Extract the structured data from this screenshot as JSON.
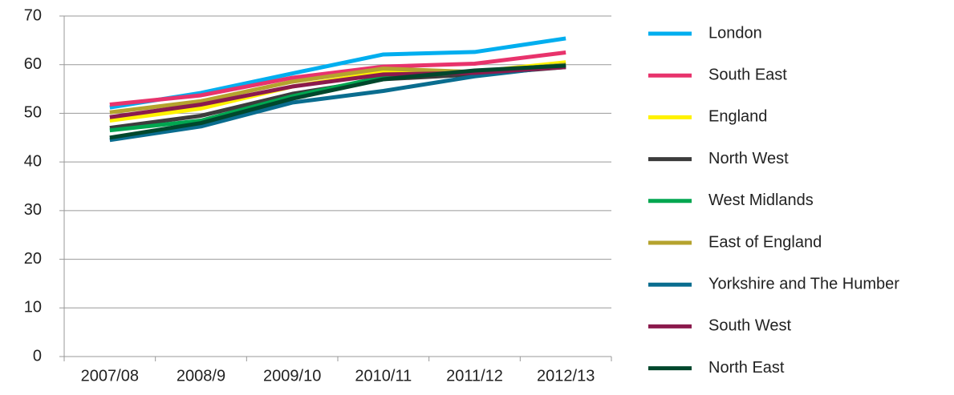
{
  "chart_data": {
    "type": "line",
    "categories": [
      "2007/08",
      "2008/9",
      "2009/10",
      "2010/11",
      "2011/12",
      "2012/13"
    ],
    "series": [
      {
        "name": "London",
        "color": "#00aeef",
        "values": [
          51.2,
          54.2,
          58.2,
          62.1,
          62.6,
          65.4
        ]
      },
      {
        "name": "South East",
        "color": "#e8336c",
        "values": [
          51.8,
          53.7,
          57.3,
          59.6,
          60.2,
          62.5
        ]
      },
      {
        "name": "England",
        "color": "#fff200",
        "values": [
          48.5,
          51,
          55.5,
          58.5,
          58.5,
          60.5
        ]
      },
      {
        "name": "North West",
        "color": "#3c3c3c",
        "values": [
          47,
          49.5,
          54,
          57,
          58,
          59.5
        ]
      },
      {
        "name": "West Midlands",
        "color": "#00a650",
        "values": [
          46.5,
          48.5,
          53.5,
          57.5,
          58.5,
          60
        ]
      },
      {
        "name": "East of England",
        "color": "#b5a32e",
        "values": [
          50.2,
          52.5,
          56.5,
          59.2,
          58.5,
          60
        ]
      },
      {
        "name": "Yorkshire and The Humber",
        "color": "#0a6d8f",
        "values": [
          44.5,
          47.3,
          52.2,
          54.6,
          57.6,
          59.8
        ]
      },
      {
        "name": "South West",
        "color": "#8b1a4d",
        "values": [
          49.2,
          51.8,
          55.5,
          58,
          58.3,
          59.5
        ]
      },
      {
        "name": "North East",
        "color": "#00472c",
        "values": [
          45,
          48,
          53,
          57,
          58.8,
          59.8
        ]
      }
    ],
    "ylim": [
      0,
      70
    ],
    "yticks": [
      0,
      10,
      20,
      30,
      40,
      50,
      60,
      70
    ],
    "grid": true,
    "legend": "right"
  }
}
